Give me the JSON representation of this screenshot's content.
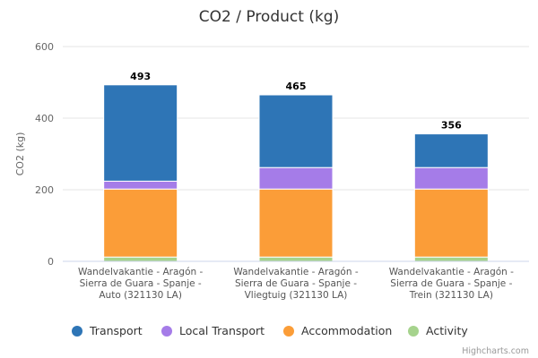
{
  "chart_data": {
    "type": "bar",
    "stacked": true,
    "title": "CO2 / Product (kg)",
    "xlabel": "",
    "ylabel": "CO2 (kg)",
    "ylim": [
      0,
      600
    ],
    "yticks": [
      0,
      200,
      400,
      600
    ],
    "categories": [
      [
        "Wandelvakantie - Aragón -",
        "Sierra de Guara - Spanje -",
        "Auto (321130 LA)"
      ],
      [
        "Wandelvakantie - Aragón -",
        "Sierra de Guara - Spanje -",
        "Vliegtuig (321130 LA)"
      ],
      [
        "Wandelvakantie - Aragón -",
        "Sierra de Guara - Spanje -",
        "Trein (321130 LA)"
      ]
    ],
    "series": [
      {
        "name": "Activity",
        "color": "#a6d38d",
        "values": [
          12,
          12,
          12
        ]
      },
      {
        "name": "Accommodation",
        "color": "#fb9d38",
        "values": [
          190,
          190,
          190
        ]
      },
      {
        "name": "Local Transport",
        "color": "#a57ce8",
        "values": [
          22,
          60,
          60
        ]
      },
      {
        "name": "Transport",
        "color": "#2e75b6",
        "values": [
          269,
          203,
          94
        ]
      }
    ],
    "totals": [
      "493",
      "465",
      "356"
    ],
    "legend": {
      "position": "bottom",
      "order": [
        "Transport",
        "Local Transport",
        "Accommodation",
        "Activity"
      ]
    },
    "grid": true
  },
  "credits": "Highcharts.com"
}
